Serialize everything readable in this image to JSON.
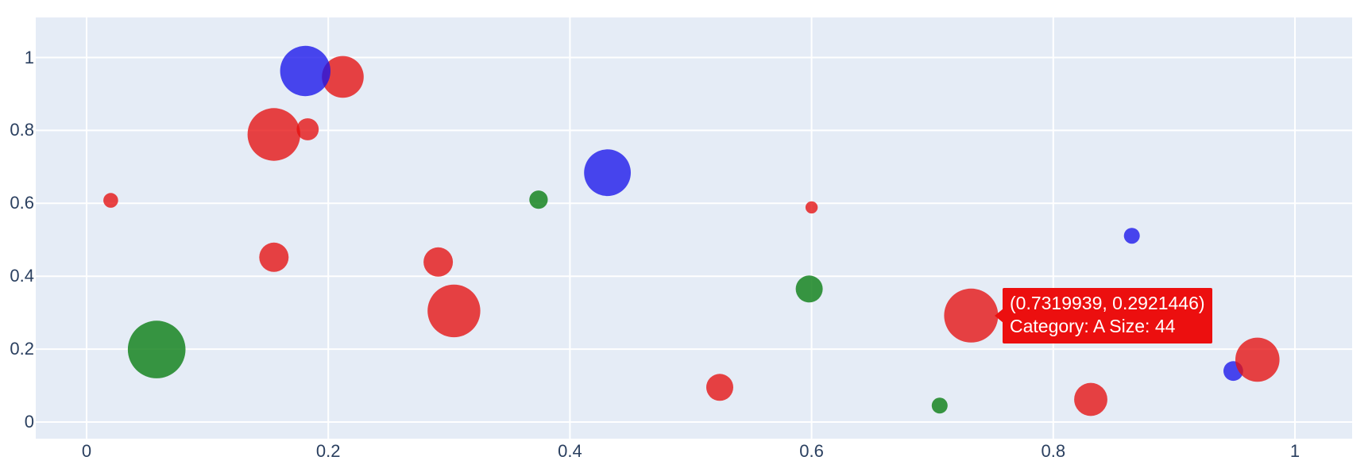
{
  "chart_data": {
    "type": "scatter",
    "subtype": "bubble",
    "title": "",
    "xlabel": "",
    "ylabel": "",
    "grid": true,
    "legend_visible": false,
    "plot_bg": "#e5ecf6",
    "grid_color": "#ffffff",
    "tick_color": "#2a3f5f",
    "xlim": [
      -0.042,
      1.047
    ],
    "ylim": [
      -0.045,
      1.11
    ],
    "x_ticks": [
      "0",
      "0.2",
      "0.4",
      "0.6",
      "0.8",
      "1"
    ],
    "x_tick_values": [
      0,
      0.2,
      0.4,
      0.6,
      0.8,
      1
    ],
    "y_ticks": [
      "0",
      "0.2",
      "0.4",
      "0.6",
      "0.8",
      "1"
    ],
    "y_tick_values": [
      0,
      0.2,
      0.4,
      0.6,
      0.8,
      1
    ],
    "colors": {
      "red": "rgba(230,15,15,0.78)",
      "blue": "rgba(25,20,235,0.78)",
      "green": "rgba(15,128,25,0.82)"
    },
    "points": [
      {
        "x": 0.155,
        "y": 0.789,
        "size": 43,
        "color": "red"
      },
      {
        "x": 0.183,
        "y": 0.803,
        "size": 18,
        "color": "red"
      },
      {
        "x": 0.212,
        "y": 0.947,
        "size": 34,
        "color": "red"
      },
      {
        "x": 0.181,
        "y": 0.963,
        "size": 41,
        "color": "blue"
      },
      {
        "x": 0.02,
        "y": 0.608,
        "size": 12,
        "color": "red"
      },
      {
        "x": 0.155,
        "y": 0.452,
        "size": 24,
        "color": "red"
      },
      {
        "x": 0.058,
        "y": 0.199,
        "size": 47,
        "color": "green"
      },
      {
        "x": 0.374,
        "y": 0.61,
        "size": 15,
        "color": "green"
      },
      {
        "x": 0.431,
        "y": 0.684,
        "size": 38,
        "color": "blue"
      },
      {
        "x": 0.291,
        "y": 0.439,
        "size": 24,
        "color": "red"
      },
      {
        "x": 0.304,
        "y": 0.305,
        "size": 43,
        "color": "red"
      },
      {
        "x": 0.524,
        "y": 0.095,
        "size": 22,
        "color": "red"
      },
      {
        "x": 0.6,
        "y": 0.589,
        "size": 10,
        "color": "red"
      },
      {
        "x": 0.598,
        "y": 0.365,
        "size": 22,
        "color": "green"
      },
      {
        "x": 0.706,
        "y": 0.045,
        "size": 13,
        "color": "green"
      },
      {
        "x": 0.7319939,
        "y": 0.2921446,
        "size": 44,
        "color": "red",
        "category": "A"
      },
      {
        "x": 0.865,
        "y": 0.511,
        "size": 13,
        "color": "blue"
      },
      {
        "x": 0.949,
        "y": 0.14,
        "size": 16,
        "color": "blue"
      },
      {
        "x": 0.969,
        "y": 0.171,
        "size": 36,
        "color": "red"
      },
      {
        "x": 0.831,
        "y": 0.062,
        "size": 27,
        "color": "red"
      }
    ],
    "tooltip": {
      "line1": "(0.7319939, 0.2921446)",
      "line2": "Category: A Size: 44",
      "x": 0.7319939,
      "y": 0.2921446,
      "category": "A",
      "size": 44,
      "bg": "#ec0f0f",
      "text_color": "#ffffff"
    }
  }
}
